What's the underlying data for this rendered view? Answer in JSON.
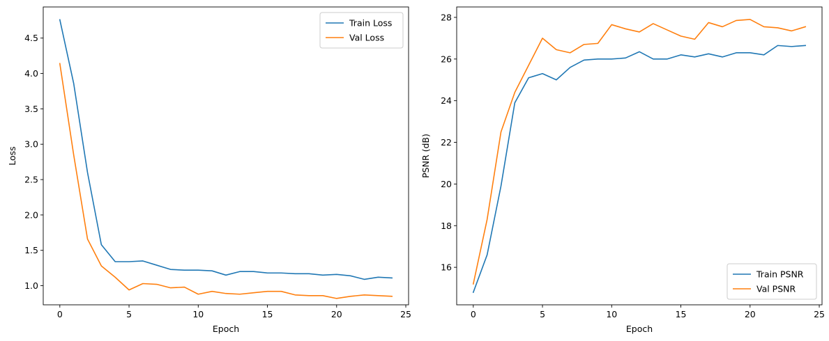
{
  "chart_data": [
    {
      "type": "line",
      "xlabel": "Epoch",
      "ylabel": "Loss",
      "xlim": [
        -1.2,
        25.2
      ],
      "ylim": [
        0.73,
        4.94
      ],
      "xticks": [
        0,
        5,
        10,
        15,
        20,
        25
      ],
      "yticks": [
        1.0,
        1.5,
        2.0,
        2.5,
        3.0,
        3.5,
        4.0,
        4.5
      ],
      "ytick_labels": [
        "1.0",
        "1.5",
        "2.0",
        "2.5",
        "3.0",
        "3.5",
        "4.0",
        "4.5"
      ],
      "legend_position": "top-right",
      "x": [
        0,
        1,
        2,
        3,
        4,
        5,
        6,
        7,
        8,
        9,
        10,
        11,
        12,
        13,
        14,
        15,
        16,
        17,
        18,
        19,
        20,
        21,
        22,
        23,
        24
      ],
      "series": [
        {
          "name": "Train Loss",
          "color": "#1f77b4",
          "values": [
            4.76,
            3.86,
            2.6,
            1.58,
            1.34,
            1.34,
            1.35,
            1.29,
            1.23,
            1.22,
            1.22,
            1.21,
            1.15,
            1.2,
            1.2,
            1.18,
            1.18,
            1.17,
            1.17,
            1.15,
            1.16,
            1.14,
            1.09,
            1.12,
            1.11
          ]
        },
        {
          "name": "Val Loss",
          "color": "#ff7f0e",
          "values": [
            4.14,
            2.85,
            1.66,
            1.28,
            1.12,
            0.94,
            1.03,
            1.02,
            0.97,
            0.98,
            0.88,
            0.92,
            0.89,
            0.88,
            0.9,
            0.92,
            0.92,
            0.87,
            0.86,
            0.86,
            0.82,
            0.85,
            0.87,
            0.86,
            0.85
          ]
        }
      ]
    },
    {
      "type": "line",
      "xlabel": "Epoch",
      "ylabel": "PSNR (dB)",
      "xlim": [
        -1.2,
        25.2
      ],
      "ylim": [
        14.2,
        28.5
      ],
      "xticks": [
        0,
        5,
        10,
        15,
        20,
        25
      ],
      "yticks": [
        16,
        18,
        20,
        22,
        24,
        26,
        28
      ],
      "ytick_labels": [
        "16",
        "18",
        "20",
        "22",
        "24",
        "26",
        "28"
      ],
      "legend_position": "bottom-right",
      "x": [
        0,
        1,
        2,
        3,
        4,
        5,
        6,
        7,
        8,
        9,
        10,
        11,
        12,
        13,
        14,
        15,
        16,
        17,
        18,
        19,
        20,
        21,
        22,
        23,
        24
      ],
      "series": [
        {
          "name": "Train PSNR",
          "color": "#1f77b4",
          "values": [
            14.8,
            16.6,
            19.9,
            23.9,
            25.1,
            25.3,
            25.0,
            25.6,
            25.95,
            26.0,
            26.0,
            26.05,
            26.35,
            26.0,
            26.0,
            26.2,
            26.1,
            26.25,
            26.1,
            26.3,
            26.3,
            26.2,
            26.65,
            26.6,
            26.65
          ]
        },
        {
          "name": "Val PSNR",
          "color": "#ff7f0e",
          "values": [
            15.2,
            18.3,
            22.5,
            24.4,
            25.7,
            27.0,
            26.45,
            26.3,
            26.7,
            26.75,
            27.65,
            27.45,
            27.3,
            27.7,
            27.4,
            27.1,
            26.95,
            27.75,
            27.55,
            27.85,
            27.9,
            27.55,
            27.5,
            27.35,
            27.55
          ]
        }
      ]
    }
  ]
}
